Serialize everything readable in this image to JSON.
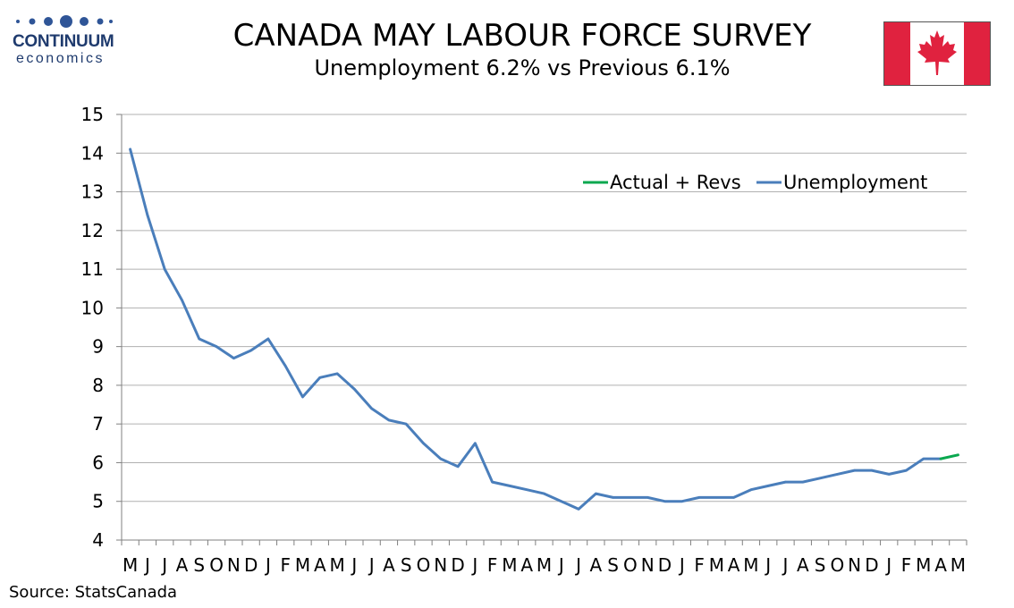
{
  "logo": {
    "name": "CONTINUUM",
    "sub": "economics"
  },
  "header": {
    "title": "CANADA MAY LABOUR FORCE SURVEY",
    "subtitle": "Unemployment  6.2% vs Previous 6.1%"
  },
  "source": "Source: StatsCanada",
  "colors": {
    "unemployment": "#4a7ebb",
    "actual_revs": "#0aa84f",
    "grid": "#b0b0b0",
    "flag_red": "#e0223f"
  },
  "chart_data": {
    "type": "line",
    "categories": [
      "M",
      "J",
      "J",
      "A",
      "S",
      "O",
      "N",
      "D",
      "J",
      "F",
      "M",
      "A",
      "M",
      "J",
      "J",
      "A",
      "S",
      "O",
      "N",
      "D",
      "J",
      "F",
      "M",
      "A",
      "M",
      "J",
      "J",
      "A",
      "S",
      "O",
      "N",
      "D",
      "J",
      "F",
      "M",
      "A",
      "M",
      "J",
      "J",
      "A",
      "S",
      "O",
      "N",
      "D",
      "J",
      "F",
      "M",
      "A",
      "M"
    ],
    "ylim": [
      4,
      15
    ],
    "yticks": [
      4,
      5,
      6,
      7,
      8,
      9,
      10,
      11,
      12,
      13,
      14,
      15
    ],
    "grid": true,
    "legend_position": "top-right",
    "series": [
      {
        "name": "Unemployment",
        "values": [
          14.1,
          12.4,
          11.0,
          10.2,
          9.2,
          9.0,
          8.7,
          8.9,
          9.2,
          8.5,
          7.7,
          8.2,
          8.3,
          7.9,
          7.4,
          7.1,
          7.0,
          6.5,
          6.1,
          5.9,
          6.5,
          5.5,
          5.4,
          5.3,
          5.2,
          5.0,
          4.8,
          5.2,
          5.1,
          5.1,
          5.1,
          5.0,
          5.0,
          5.1,
          5.1,
          5.1,
          5.3,
          5.4,
          5.5,
          5.5,
          5.6,
          5.7,
          5.8,
          5.8,
          5.7,
          5.8,
          6.1,
          6.1,
          null
        ]
      },
      {
        "name": "Actual + Revs",
        "values": [
          null,
          null,
          null,
          null,
          null,
          null,
          null,
          null,
          null,
          null,
          null,
          null,
          null,
          null,
          null,
          null,
          null,
          null,
          null,
          null,
          null,
          null,
          null,
          null,
          null,
          null,
          null,
          null,
          null,
          null,
          null,
          null,
          null,
          null,
          null,
          null,
          null,
          null,
          null,
          null,
          null,
          null,
          null,
          null,
          null,
          null,
          null,
          6.1,
          6.2
        ]
      }
    ],
    "legend": [
      "Actual + Revs",
      "Unemployment"
    ]
  }
}
